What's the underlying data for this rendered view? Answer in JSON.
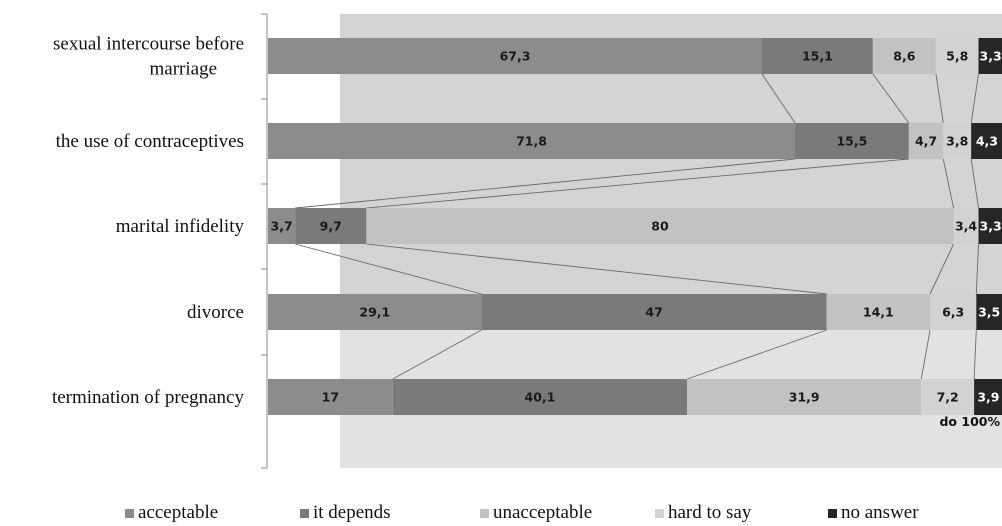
{
  "chart_data": {
    "type": "bar",
    "orientation": "horizontal",
    "stacked": true,
    "categories": [
      "sexual intercourse before marriage",
      "the use of contraceptives",
      "marital infidelity",
      "divorce",
      "termination of pregnancy"
    ],
    "category_label_lines": [
      [
        "sexual intercourse before",
        "marriage"
      ],
      [
        "the use of contraceptives"
      ],
      [
        "marital infidelity"
      ],
      [
        "divorce"
      ],
      [
        "termination of pregnancy"
      ]
    ],
    "series": [
      {
        "name": "acceptable",
        "color": "#8c8c8c",
        "label_color": "#1a1a1a",
        "values": [
          67.3,
          71.8,
          3.7,
          29.1,
          17
        ]
      },
      {
        "name": "it depends",
        "color": "#7a7a7a",
        "label_color": "#1a1a1a",
        "values": [
          15.1,
          15.5,
          9.7,
          47,
          40.1
        ]
      },
      {
        "name": "unacceptable",
        "color": "#c2c2c2",
        "label_color": "#1a1a1a",
        "values": [
          8.6,
          4.7,
          80,
          14.1,
          31.9
        ]
      },
      {
        "name": "hard to say",
        "color": "#d2d2d2",
        "label_color": "#1a1a1a",
        "values": [
          5.8,
          3.8,
          3.4,
          6.3,
          7.2
        ]
      },
      {
        "name": "no answer",
        "color": "#262626",
        "label_color": "#ffffff",
        "values": [
          3.3,
          4.3,
          3.3,
          3.5,
          3.9
        ]
      }
    ],
    "value_labels": [
      [
        "67,3",
        "15,1",
        "8,6",
        "5,8",
        "3,3"
      ],
      [
        "71,8",
        "15,5",
        "4,7",
        "3,8",
        "4,3"
      ],
      [
        "3,7",
        "9,7",
        "80",
        "3,4",
        "3,3"
      ],
      [
        "29,1",
        "47",
        "14,1",
        "6,3",
        "3,5"
      ],
      [
        "17",
        "40,1",
        "31,9",
        "7,2",
        "3,9"
      ]
    ],
    "xlim": [
      0,
      100
    ],
    "series_lines": true,
    "grid": false,
    "legend_position": "bottom",
    "annotation": "do 100%"
  }
}
